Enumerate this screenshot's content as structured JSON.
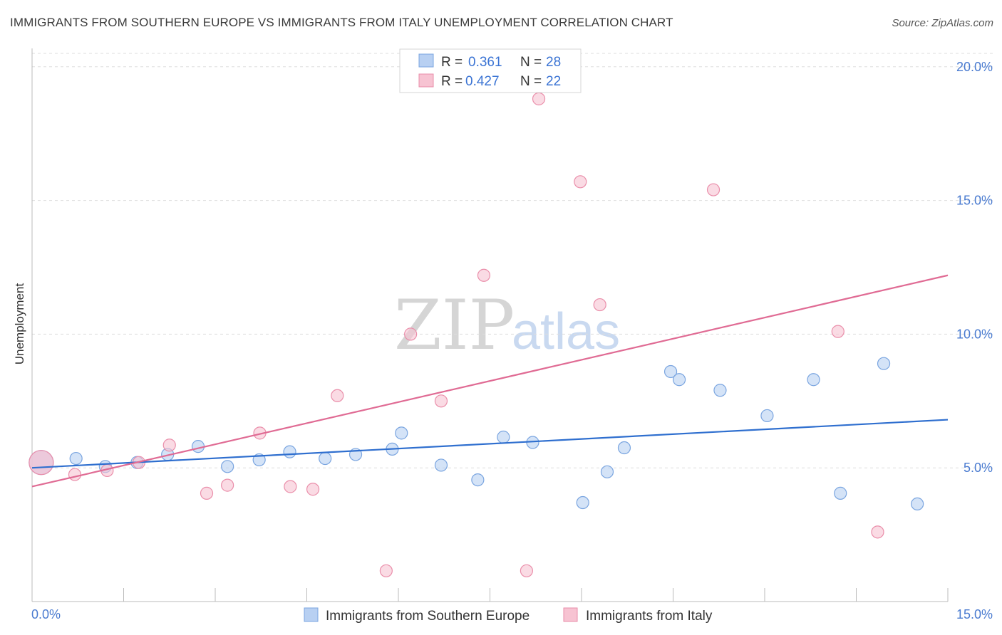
{
  "title": "IMMIGRANTS FROM SOUTHERN EUROPE VS IMMIGRANTS FROM ITALY UNEMPLOYMENT CORRELATION CHART",
  "source": "Source: ZipAtlas.com",
  "watermark": {
    "zip": "ZIP",
    "atlas": "atlas"
  },
  "colors": {
    "blue_fill": "#b8d0f2",
    "blue_stroke": "#7aa5e0",
    "blue_line": "#2f6fcf",
    "pink_fill": "#f7c3d2",
    "pink_stroke": "#ea8eaa",
    "pink_line": "#e06b94",
    "grid": "#dddddd",
    "tick": "#4a7bd0"
  },
  "legend_top": {
    "rows": [
      {
        "r_label": "R =",
        "r_value": "0.361",
        "n_label": "N =",
        "n_value": "28"
      },
      {
        "r_label": "R =",
        "r_value": "0.427",
        "n_label": "N =",
        "n_value": "22"
      }
    ]
  },
  "chart_data": {
    "type": "scatter",
    "xlabel": "",
    "ylabel": "Unemployment",
    "xlim": [
      0,
      15
    ],
    "ylim": [
      0,
      20.5
    ],
    "x_tick_labels": {
      "left": "0.0%",
      "right": "15.0%"
    },
    "y_ticks": [
      {
        "value": 5,
        "label": "5.0%"
      },
      {
        "value": 10,
        "label": "10.0%"
      },
      {
        "value": 15,
        "label": "15.0%"
      },
      {
        "value": 20,
        "label": "20.0%"
      }
    ],
    "series": [
      {
        "name": "Immigrants from Southern Europe",
        "color": "blue",
        "trend": {
          "x0": 0,
          "y0": 5.0,
          "x1": 15,
          "y1": 6.8
        },
        "points": [
          {
            "x": 0.15,
            "y": 5.2,
            "big": true
          },
          {
            "x": 0.72,
            "y": 5.35
          },
          {
            "x": 1.2,
            "y": 5.05
          },
          {
            "x": 1.72,
            "y": 5.2
          },
          {
            "x": 2.22,
            "y": 5.5
          },
          {
            "x": 2.72,
            "y": 5.8
          },
          {
            "x": 3.2,
            "y": 5.05
          },
          {
            "x": 3.72,
            "y": 5.3
          },
          {
            "x": 4.22,
            "y": 5.6
          },
          {
            "x": 4.8,
            "y": 5.35
          },
          {
            "x": 5.3,
            "y": 5.5
          },
          {
            "x": 5.9,
            "y": 5.7
          },
          {
            "x": 6.05,
            "y": 6.3
          },
          {
            "x": 6.7,
            "y": 5.1
          },
          {
            "x": 7.3,
            "y": 4.55
          },
          {
            "x": 7.72,
            "y": 6.15
          },
          {
            "x": 8.2,
            "y": 5.95
          },
          {
            "x": 9.02,
            "y": 3.7
          },
          {
            "x": 9.42,
            "y": 4.85
          },
          {
            "x": 9.7,
            "y": 5.75
          },
          {
            "x": 10.46,
            "y": 8.6
          },
          {
            "x": 10.6,
            "y": 8.3
          },
          {
            "x": 11.27,
            "y": 7.9
          },
          {
            "x": 12.04,
            "y": 6.95
          },
          {
            "x": 12.8,
            "y": 8.3
          },
          {
            "x": 13.24,
            "y": 4.05
          },
          {
            "x": 13.95,
            "y": 8.9
          },
          {
            "x": 14.5,
            "y": 3.65
          }
        ]
      },
      {
        "name": "Immigrants from Italy",
        "color": "pink",
        "trend": {
          "x0": 0,
          "y0": 4.3,
          "x1": 15,
          "y1": 12.2
        },
        "points": [
          {
            "x": 0.15,
            "y": 5.2,
            "big": true
          },
          {
            "x": 0.7,
            "y": 4.75
          },
          {
            "x": 1.23,
            "y": 4.9
          },
          {
            "x": 1.75,
            "y": 5.2
          },
          {
            "x": 2.25,
            "y": 5.85
          },
          {
            "x": 2.86,
            "y": 4.05
          },
          {
            "x": 3.2,
            "y": 4.35
          },
          {
            "x": 3.73,
            "y": 6.3
          },
          {
            "x": 4.23,
            "y": 4.3
          },
          {
            "x": 4.6,
            "y": 4.2
          },
          {
            "x": 5.0,
            "y": 7.7
          },
          {
            "x": 5.8,
            "y": 1.15
          },
          {
            "x": 6.2,
            "y": 10.0
          },
          {
            "x": 6.7,
            "y": 7.5
          },
          {
            "x": 7.4,
            "y": 12.2
          },
          {
            "x": 8.1,
            "y": 1.15
          },
          {
            "x": 8.3,
            "y": 18.8
          },
          {
            "x": 8.98,
            "y": 15.7
          },
          {
            "x": 9.3,
            "y": 11.1
          },
          {
            "x": 11.16,
            "y": 15.4
          },
          {
            "x": 13.2,
            "y": 10.1
          },
          {
            "x": 13.85,
            "y": 2.6
          }
        ]
      }
    ]
  }
}
